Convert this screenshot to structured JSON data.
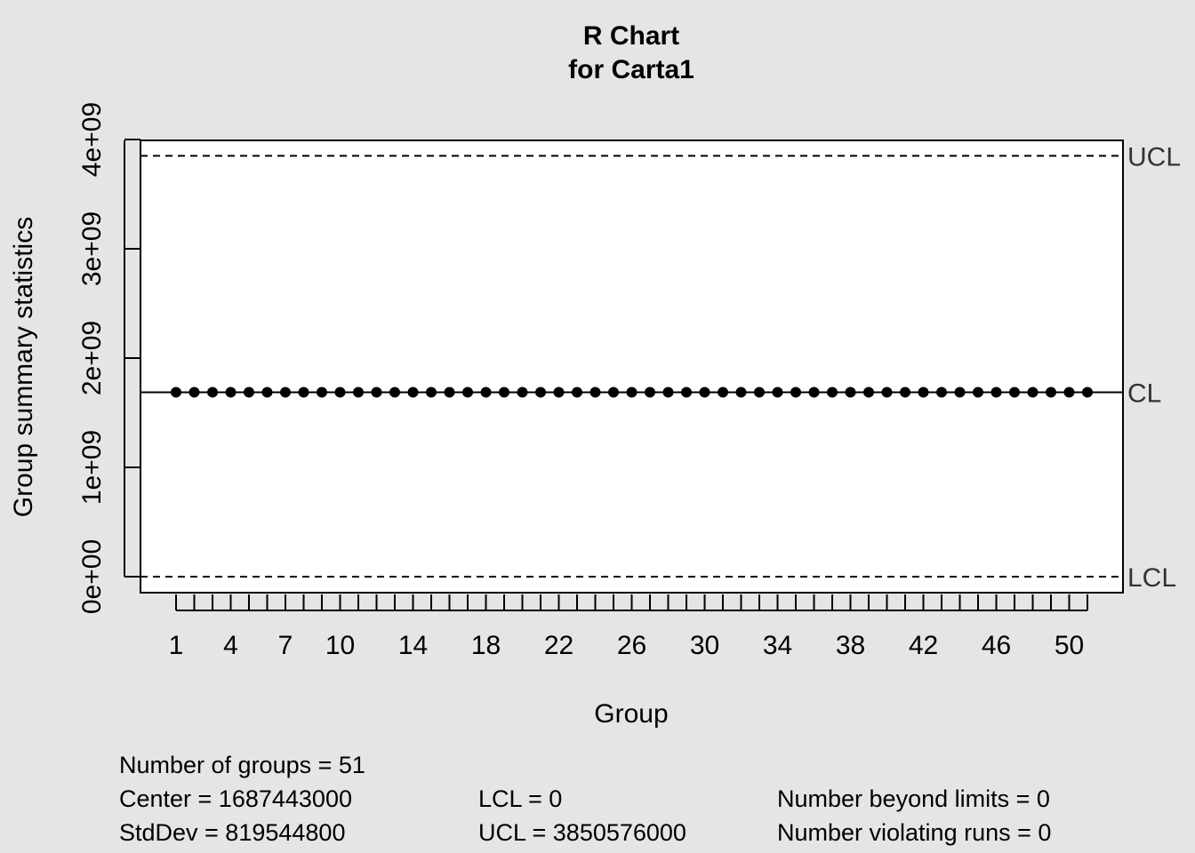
{
  "chart_data": {
    "type": "line",
    "title": "R Chart",
    "subtitle": "for Carta1",
    "xlabel": "Group",
    "ylabel": "Group summary statistics",
    "groups": [
      1,
      2,
      3,
      4,
      5,
      6,
      7,
      8,
      9,
      10,
      11,
      12,
      13,
      14,
      15,
      16,
      17,
      18,
      19,
      20,
      21,
      22,
      23,
      24,
      25,
      26,
      27,
      28,
      29,
      30,
      31,
      32,
      33,
      34,
      35,
      36,
      37,
      38,
      39,
      40,
      41,
      42,
      43,
      44,
      45,
      46,
      47,
      48,
      49,
      50,
      51
    ],
    "x_tick_labels": [
      "1",
      "4",
      "7",
      "10",
      "14",
      "18",
      "22",
      "26",
      "30",
      "34",
      "38",
      "42",
      "46",
      "50"
    ],
    "y_ticks": [
      0,
      1000000000,
      2000000000,
      3000000000,
      4000000000
    ],
    "y_tick_labels": [
      "0e+00",
      "1e+09",
      "2e+09",
      "3e+09",
      "4e+09"
    ],
    "ylim": [
      -150000000,
      4000000000
    ],
    "value": 1687443000,
    "center_line": 1687443000,
    "lcl": 0,
    "ucl": 3850576000,
    "limit_labels": {
      "ucl": "UCL",
      "cl": "CL",
      "lcl": "LCL"
    },
    "grid": false
  },
  "stats": {
    "groups": "Number of groups = 51",
    "center": "Center = 1687443000",
    "stddev": "StdDev = 819544800",
    "lcl": "LCL = 0",
    "ucl": "UCL = 3850576000",
    "beyond": "Number beyond limits = 0",
    "violating": "Number violating runs = 0"
  }
}
